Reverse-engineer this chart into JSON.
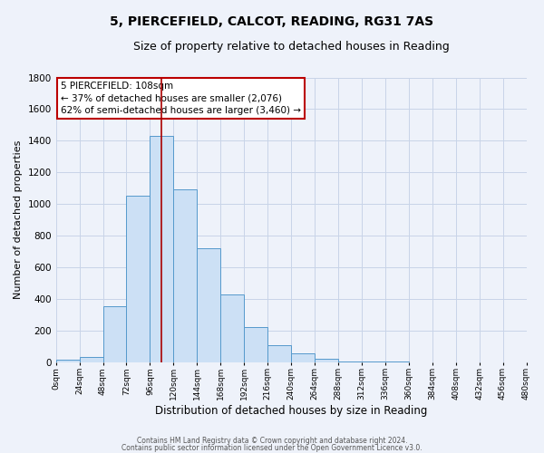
{
  "title1": "5, PIERCEFIELD, CALCOT, READING, RG31 7AS",
  "title2": "Size of property relative to detached houses in Reading",
  "xlabel": "Distribution of detached houses by size in Reading",
  "ylabel": "Number of detached properties",
  "bar_heights": [
    15,
    30,
    350,
    1050,
    1430,
    1090,
    720,
    430,
    220,
    105,
    55,
    20,
    5,
    2,
    1,
    0,
    0,
    0,
    0,
    0
  ],
  "bin_edges": [
    0,
    24,
    48,
    72,
    96,
    120,
    144,
    168,
    192,
    216,
    240,
    264,
    288,
    312,
    336,
    360,
    384,
    408,
    432,
    456,
    480
  ],
  "bar_color": "#cce0f5",
  "bar_edge_color": "#5599cc",
  "property_line_x": 108,
  "property_line_color": "#aa0000",
  "annotation_text": "5 PIERCEFIELD: 108sqm\n← 37% of detached houses are smaller (2,076)\n62% of semi-detached houses are larger (3,460) →",
  "annotation_box_color": "#ffffff",
  "annotation_box_edge_color": "#bb0000",
  "xlim": [
    0,
    480
  ],
  "ylim": [
    0,
    1800
  ],
  "yticks": [
    0,
    200,
    400,
    600,
    800,
    1000,
    1200,
    1400,
    1600,
    1800
  ],
  "xtick_labels": [
    "0sqm",
    "24sqm",
    "48sqm",
    "72sqm",
    "96sqm",
    "120sqm",
    "144sqm",
    "168sqm",
    "192sqm",
    "216sqm",
    "240sqm",
    "264sqm",
    "288sqm",
    "312sqm",
    "336sqm",
    "360sqm",
    "384sqm",
    "408sqm",
    "432sqm",
    "456sqm",
    "480sqm"
  ],
  "xtick_positions": [
    0,
    24,
    48,
    72,
    96,
    120,
    144,
    168,
    192,
    216,
    240,
    264,
    288,
    312,
    336,
    360,
    384,
    408,
    432,
    456,
    480
  ],
  "grid_color": "#c8d4e8",
  "background_color": "#eef2fa",
  "footnote1": "Contains HM Land Registry data © Crown copyright and database right 2024.",
  "footnote2": "Contains public sector information licensed under the Open Government Licence v3.0."
}
